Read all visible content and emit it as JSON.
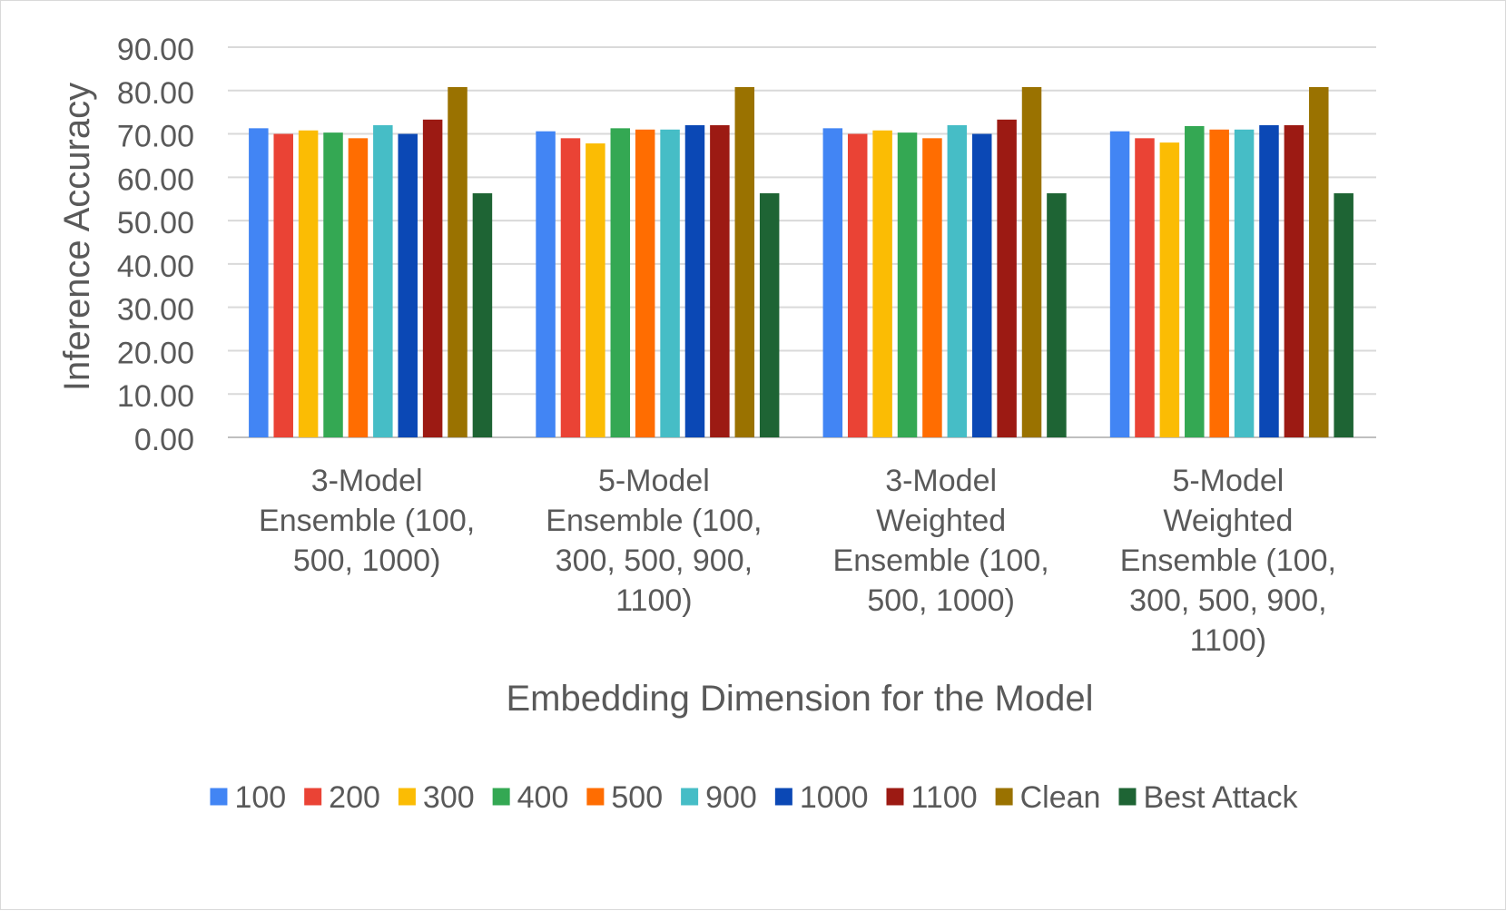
{
  "chart_data": {
    "type": "bar",
    "title": "",
    "xlabel": "Embedding Dimension for the Model",
    "ylabel": "Inference Accuracy",
    "ylim": [
      0,
      90
    ],
    "yticks": [
      "0.00",
      "10.00",
      "20.00",
      "30.00",
      "40.00",
      "50.00",
      "60.00",
      "70.00",
      "80.00",
      "90.00"
    ],
    "grid": true,
    "legend_position": "bottom",
    "categories": [
      [
        "3-Model",
        "Ensemble (100,",
        "500, 1000)"
      ],
      [
        "5-Model",
        "Ensemble (100,",
        "300, 500, 900,",
        "1100)"
      ],
      [
        "3-Model",
        "Weighted",
        "Ensemble (100,",
        "500, 1000)"
      ],
      [
        "5-Model",
        "Weighted",
        "Ensemble (100,",
        "300, 500, 900,",
        "1100)"
      ]
    ],
    "series": [
      {
        "name": "100",
        "color": "#4285F4",
        "values": [
          71.3,
          70.6,
          71.3,
          70.6
        ]
      },
      {
        "name": "200",
        "color": "#EA4335",
        "values": [
          70.0,
          69.0,
          70.0,
          69.0
        ]
      },
      {
        "name": "300",
        "color": "#FBBC04",
        "values": [
          70.8,
          67.8,
          70.8,
          68.0
        ]
      },
      {
        "name": "400",
        "color": "#34A853",
        "values": [
          70.3,
          71.3,
          70.3,
          71.8
        ]
      },
      {
        "name": "500",
        "color": "#FF6D01",
        "values": [
          69.0,
          71.0,
          69.0,
          71.0
        ]
      },
      {
        "name": "900",
        "color": "#46BDC6",
        "values": [
          72.0,
          71.0,
          72.0,
          71.0
        ]
      },
      {
        "name": "1000",
        "color": "#0B48B5",
        "values": [
          70.0,
          72.0,
          70.0,
          72.0
        ]
      },
      {
        "name": "1100",
        "color": "#9C1A13",
        "values": [
          73.3,
          72.0,
          73.3,
          72.0
        ]
      },
      {
        "name": "Clean",
        "color": "#9A7200",
        "values": [
          80.8,
          80.8,
          80.8,
          80.8
        ]
      },
      {
        "name": "Best Attack",
        "color": "#1E6434",
        "values": [
          56.3,
          56.3,
          56.3,
          56.3
        ]
      }
    ]
  }
}
